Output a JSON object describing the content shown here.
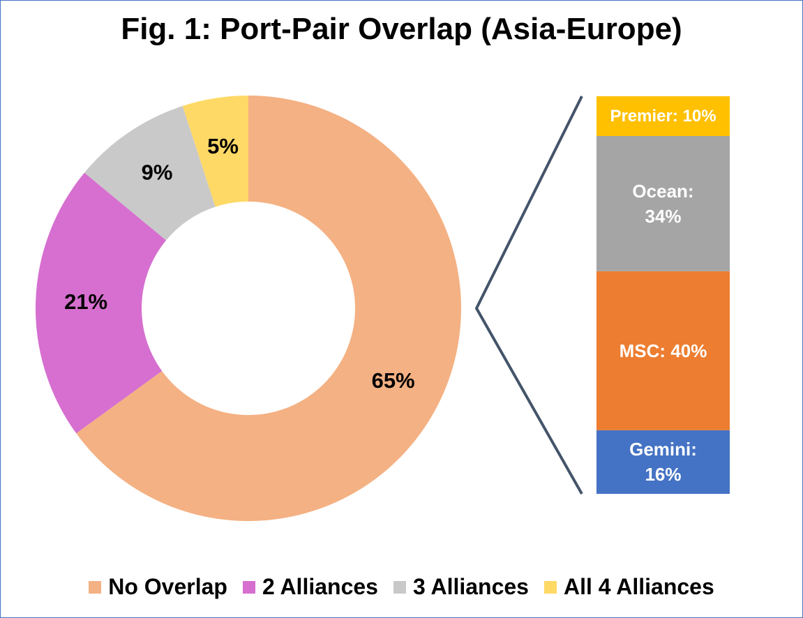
{
  "chart_data": [
    {
      "type": "donut",
      "title": "Fig. 1: Port-Pair Overlap (Asia-Europe)",
      "categories": [
        "No Overlap",
        "2 Alliances",
        "3 Alliances",
        "All 4 Alliances"
      ],
      "values": [
        65,
        21,
        9,
        5
      ],
      "value_labels": [
        "65%",
        "21%",
        "9%",
        "5%"
      ],
      "colors": [
        "#F4B183",
        "#D66FCF",
        "#C9C9C9",
        "#FFD966"
      ],
      "legend": "bottom"
    },
    {
      "type": "stacked-column",
      "categories": [
        "Gemini",
        "MSC",
        "Ocean",
        "Premier"
      ],
      "values": [
        16,
        40,
        34,
        10
      ],
      "value_labels": [
        "Gemini: 16%",
        "MSC: 40%",
        "Ocean: 34%",
        "Premier: 10%"
      ],
      "colors": [
        "#4472C4",
        "#ED7D31",
        "#A5A5A5",
        "#FFC000"
      ]
    }
  ]
}
